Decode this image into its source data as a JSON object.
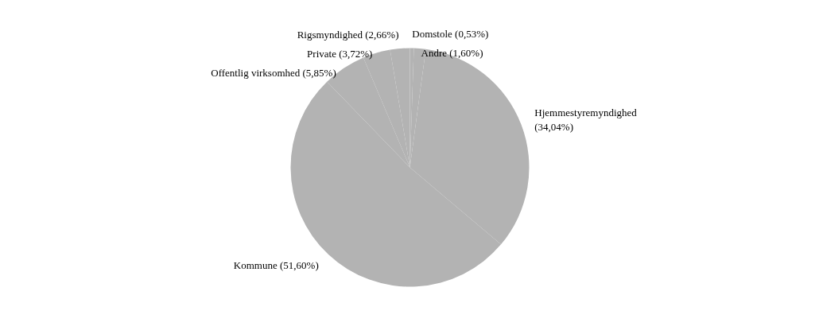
{
  "chart_data": {
    "type": "pie",
    "categories": [
      "Domstole (0,53%)",
      "Andre (1,60%)",
      "Hjemmestyremyndighed\n(34,04%)",
      "Kommune (51,60%)",
      "Offentlig virksomhed (5,85%)",
      "Private (3,72%)",
      "Rigsmyndighed (2,66%)"
    ],
    "values": [
      0.53,
      1.6,
      34.04,
      51.6,
      5.85,
      3.72,
      2.66
    ],
    "colors": [
      "#b3b3b3",
      "#b3b3b3",
      "#b3b3b3",
      "#b3b3b3",
      "#b3b3b3",
      "#b3b3b3",
      "#b3b3b3"
    ]
  }
}
